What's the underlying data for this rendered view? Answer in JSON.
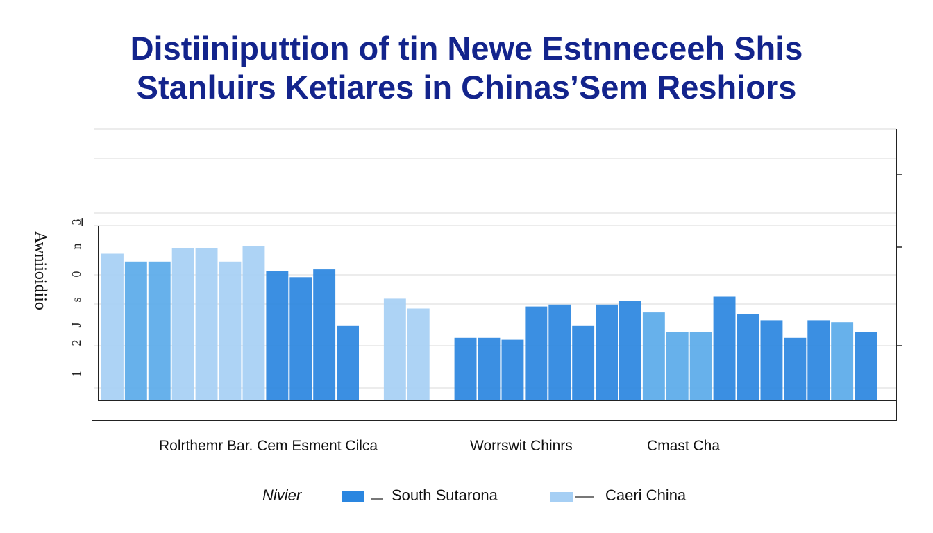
{
  "chart_data": {
    "type": "bar",
    "title": [
      "Distiiniputtion of tin Newe Estnneceeh Shis",
      "Stanluirs Ketiares in Chinas’Sem Reshiors"
    ],
    "ylabel": "Awniioidiio",
    "yticks": [
      "1",
      "3",
      "n",
      "0",
      "s",
      "J",
      "2",
      "1"
    ],
    "ylim": [
      0,
      1
    ],
    "region_labels": [
      "Rolrthemr Bar. Cem Esment Cilca",
      "Worrswit Chinrs",
      "Cmast Cha"
    ],
    "legend": [
      "Nivier",
      "South Sutarona",
      "Caeri China"
    ],
    "colors": [
      "#2a86e0",
      "#5aaae9",
      "#a6cff4"
    ],
    "values": [
      0.75,
      0.71,
      0.71,
      0.78,
      0.78,
      0.71,
      0.79,
      0.66,
      0.63,
      0.67,
      0.38,
      0.0,
      0.52,
      0.47,
      0.0,
      0.32,
      0.32,
      0.31,
      0.48,
      0.49,
      0.38,
      0.49,
      0.51,
      0.45,
      0.35,
      0.35,
      0.53,
      0.44,
      0.41,
      0.32,
      0.41,
      0.4,
      0.35
    ],
    "series_index": [
      2,
      1,
      1,
      2,
      2,
      2,
      2,
      0,
      0,
      0,
      0,
      0,
      2,
      2,
      0,
      0,
      0,
      0,
      0,
      0,
      0,
      0,
      0,
      1,
      1,
      1,
      0,
      0,
      0,
      0,
      0,
      1,
      0
    ]
  }
}
